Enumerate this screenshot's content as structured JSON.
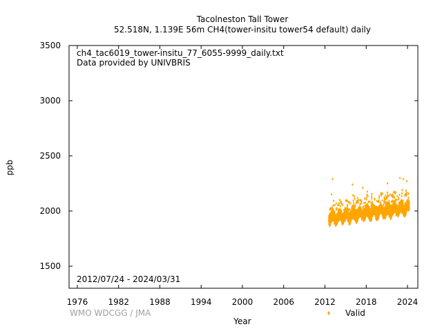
{
  "chart_data": {
    "type": "scatter",
    "title_line1": "Tacolneston Tall Tower",
    "title_line2": "52.518N, 1.139E 56m    CH4(tower-insitu tower54 default) daily",
    "file_label": "ch4_tac6019_tower-insitu_77_6055-9999_daily.txt",
    "provider_label": "Data provided by UNIVBRIS",
    "date_range_label": "2012/07/24 - 2024/03/31",
    "xlabel": "Year",
    "ylabel": "ppb",
    "credit": "WMO WDCGG / JMA",
    "xlim": [
      1974.8,
      2025.5
    ],
    "ylim": [
      1300,
      3500
    ],
    "x_ticks": [
      1976,
      1982,
      1988,
      1994,
      2000,
      2006,
      2012,
      2018,
      2024
    ],
    "y_ticks": [
      1500,
      2000,
      2500,
      3000,
      3500
    ],
    "grid": false,
    "legend_position": "bottom-right",
    "series": [
      {
        "name": "Valid",
        "color": "#ffa500",
        "x_range": [
          2012.56,
          2024.25
        ],
        "baseline_start": 1935,
        "baseline_trend_per_year": 8.5,
        "seasonal_amplitude": 25,
        "scatter_spread": 45,
        "points_per_year": 365
      }
    ],
    "outliers": [
      {
        "x": 2013.1,
        "y": 2290
      },
      {
        "x": 2016.0,
        "y": 2240
      },
      {
        "x": 2017.5,
        "y": 2210
      },
      {
        "x": 2021.1,
        "y": 2250
      },
      {
        "x": 2022.9,
        "y": 2300
      },
      {
        "x": 2023.4,
        "y": 2290
      },
      {
        "x": 2023.9,
        "y": 2270
      }
    ]
  }
}
